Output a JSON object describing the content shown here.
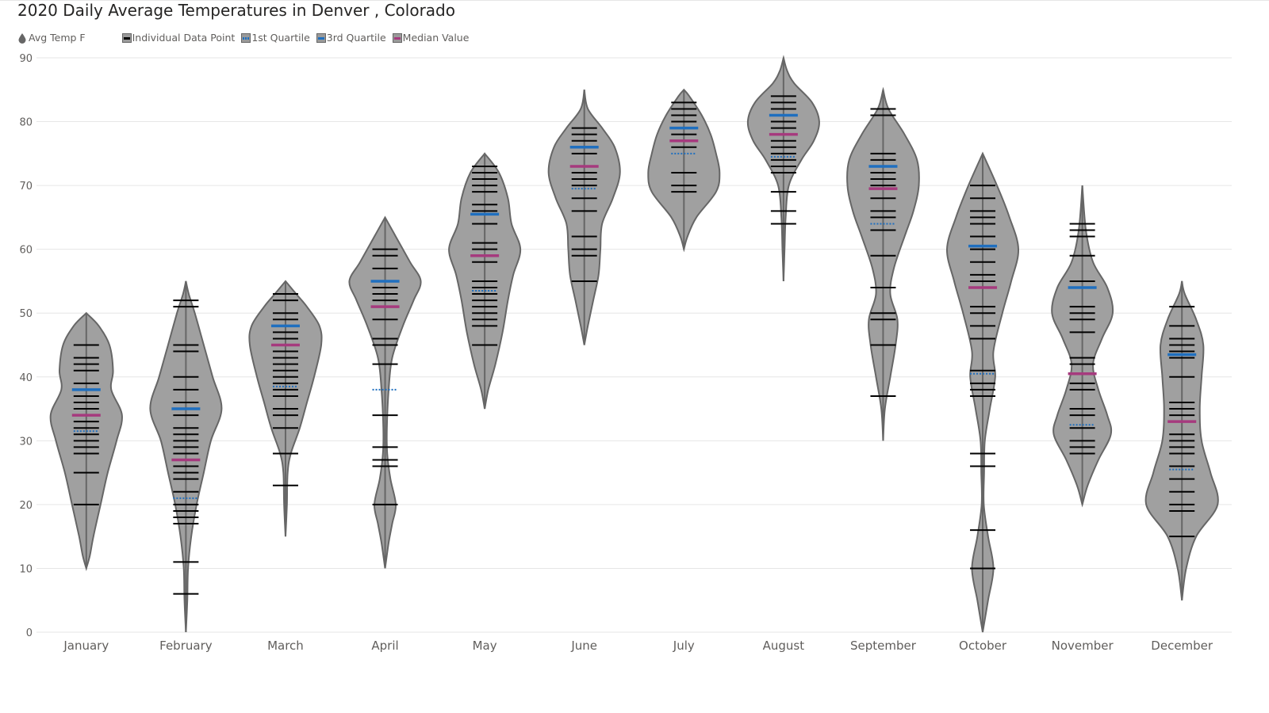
{
  "chart_data": {
    "type": "violin",
    "title": "2020 Daily Average Temperatures in Denver , Colorado",
    "ylim": [
      0,
      90
    ],
    "y_ticks": [
      0,
      10,
      20,
      30,
      40,
      50,
      60,
      70,
      80,
      90
    ],
    "grid": true,
    "legend_position": "top-left",
    "legend": [
      {
        "label": "Avg Temp F",
        "marker": "drop-icon",
        "color": "#666666"
      },
      {
        "label": "Individual Data Point",
        "marker": "line",
        "color": "#000000"
      },
      {
        "label": "1st Quartile",
        "marker": "dotted-line",
        "color": "#1f6fbf"
      },
      {
        "label": "3rd Quartile",
        "marker": "line",
        "color": "#1f6fbf"
      },
      {
        "label": "Median Value",
        "marker": "line",
        "color": "#a63a7e"
      }
    ],
    "colors": {
      "violin_fill": "#a0a0a0",
      "violin_stroke": "#666666",
      "data_point": "#000000",
      "quartile": "#1f6fbf",
      "median": "#a63a7e",
      "grid": "#e6e6e6"
    },
    "categories": [
      "January",
      "February",
      "March",
      "April",
      "May",
      "June",
      "July",
      "August",
      "September",
      "October",
      "November",
      "December"
    ],
    "months": [
      {
        "name": "January",
        "min": 10,
        "max": 50,
        "q1": 31.5,
        "median": 34,
        "q3": 38,
        "density": [
          [
            10,
            0
          ],
          [
            12,
            0.1
          ],
          [
            15,
            0.2
          ],
          [
            20,
            0.4
          ],
          [
            25,
            0.6
          ],
          [
            30,
            0.85
          ],
          [
            34,
            1.0
          ],
          [
            38,
            0.7
          ],
          [
            41,
            0.75
          ],
          [
            45,
            0.65
          ],
          [
            48,
            0.35
          ],
          [
            50,
            0
          ]
        ],
        "points": [
          20,
          25,
          28,
          29,
          30,
          31,
          32,
          33,
          35,
          36,
          37,
          39,
          41,
          42,
          43,
          45
        ]
      },
      {
        "name": "February",
        "min": 0,
        "max": 55,
        "q1": 21,
        "median": 27,
        "q3": 35,
        "density": [
          [
            0,
            0
          ],
          [
            5,
            0.04
          ],
          [
            10,
            0.06
          ],
          [
            15,
            0.15
          ],
          [
            20,
            0.3
          ],
          [
            25,
            0.5
          ],
          [
            30,
            0.7
          ],
          [
            35,
            1.0
          ],
          [
            40,
            0.75
          ],
          [
            45,
            0.5
          ],
          [
            50,
            0.25
          ],
          [
            53,
            0.08
          ],
          [
            55,
            0
          ]
        ],
        "points": [
          6,
          11,
          17,
          18,
          19,
          20,
          22,
          24,
          25,
          26,
          28,
          29,
          30,
          31,
          32,
          34,
          36,
          38,
          40,
          44,
          45,
          51,
          52
        ]
      },
      {
        "name": "March",
        "min": 15,
        "max": 55,
        "q1": 38.5,
        "median": 45,
        "q3": 48,
        "density": [
          [
            15,
            0
          ],
          [
            20,
            0.04
          ],
          [
            25,
            0.06
          ],
          [
            28,
            0.15
          ],
          [
            32,
            0.4
          ],
          [
            36,
            0.6
          ],
          [
            40,
            0.8
          ],
          [
            45,
            1.0
          ],
          [
            48,
            0.95
          ],
          [
            51,
            0.6
          ],
          [
            53,
            0.3
          ],
          [
            55,
            0
          ]
        ],
        "points": [
          23,
          28,
          32,
          34,
          35,
          37,
          38,
          39,
          40,
          41,
          42,
          43,
          44,
          46,
          47,
          49,
          50,
          52,
          53
        ]
      },
      {
        "name": "April",
        "min": 10,
        "max": 65,
        "q1": 38,
        "median": 51,
        "q3": 55,
        "density": [
          [
            10,
            0
          ],
          [
            14,
            0.1
          ],
          [
            17,
            0.2
          ],
          [
            20,
            0.3
          ],
          [
            24,
            0.15
          ],
          [
            28,
            0.06
          ],
          [
            32,
            0.05
          ],
          [
            38,
            0.1
          ],
          [
            43,
            0.2
          ],
          [
            48,
            0.5
          ],
          [
            52,
            0.8
          ],
          [
            55,
            1.0
          ],
          [
            58,
            0.7
          ],
          [
            62,
            0.3
          ],
          [
            65,
            0
          ]
        ],
        "points": [
          20,
          26,
          27,
          29,
          34,
          42,
          45,
          46,
          49,
          52,
          53,
          54,
          57,
          59,
          60
        ]
      },
      {
        "name": "May",
        "min": 35,
        "max": 75,
        "q1": 53.5,
        "median": 59,
        "q3": 65.5,
        "density": [
          [
            35,
            0
          ],
          [
            38,
            0.1
          ],
          [
            42,
            0.3
          ],
          [
            47,
            0.5
          ],
          [
            52,
            0.65
          ],
          [
            56,
            0.8
          ],
          [
            60,
            1.0
          ],
          [
            64,
            0.75
          ],
          [
            68,
            0.65
          ],
          [
            72,
            0.4
          ],
          [
            75,
            0
          ]
        ],
        "points": [
          45,
          48,
          49,
          50,
          51,
          52,
          53,
          54,
          55,
          58,
          60,
          61,
          64,
          66,
          67,
          69,
          70,
          71,
          72,
          73
        ]
      },
      {
        "name": "June",
        "min": 45,
        "max": 85,
        "q1": 69.5,
        "median": 73,
        "q3": 76,
        "density": [
          [
            45,
            0
          ],
          [
            48,
            0.1
          ],
          [
            52,
            0.25
          ],
          [
            56,
            0.4
          ],
          [
            60,
            0.45
          ],
          [
            64,
            0.5
          ],
          [
            68,
            0.8
          ],
          [
            72,
            1.0
          ],
          [
            76,
            0.85
          ],
          [
            79,
            0.5
          ],
          [
            82,
            0.1
          ],
          [
            85,
            0
          ]
        ],
        "points": [
          55,
          59,
          60,
          62,
          66,
          68,
          70,
          71,
          72,
          75,
          77,
          78,
          79
        ]
      },
      {
        "name": "July",
        "min": 60,
        "max": 85,
        "q1": 75,
        "median": 77,
        "q3": 79,
        "density": [
          [
            60,
            0
          ],
          [
            62,
            0.1
          ],
          [
            65,
            0.35
          ],
          [
            69,
            0.9
          ],
          [
            72,
            1.0
          ],
          [
            75,
            0.9
          ],
          [
            78,
            0.75
          ],
          [
            81,
            0.5
          ],
          [
            84,
            0.15
          ],
          [
            85,
            0
          ]
        ],
        "points": [
          69,
          70,
          72,
          76,
          78,
          80,
          81,
          82,
          83
        ]
      },
      {
        "name": "August",
        "min": 55,
        "max": 90,
        "q1": 74.5,
        "median": 78,
        "q3": 81,
        "density": [
          [
            55,
            0
          ],
          [
            60,
            0.03
          ],
          [
            65,
            0.06
          ],
          [
            70,
            0.15
          ],
          [
            74,
            0.5
          ],
          [
            77,
            0.85
          ],
          [
            80,
            1.0
          ],
          [
            83,
            0.8
          ],
          [
            86,
            0.3
          ],
          [
            88,
            0.1
          ],
          [
            90,
            0
          ]
        ],
        "points": [
          64,
          66,
          69,
          72,
          73,
          74,
          75,
          76,
          77,
          79,
          80,
          82,
          83,
          84
        ]
      },
      {
        "name": "September",
        "min": 30,
        "max": 85,
        "q1": 64,
        "median": 69.5,
        "q3": 73,
        "density": [
          [
            30,
            0
          ],
          [
            35,
            0.05
          ],
          [
            40,
            0.2
          ],
          [
            45,
            0.35
          ],
          [
            49,
            0.4
          ],
          [
            53,
            0.2
          ],
          [
            57,
            0.3
          ],
          [
            62,
            0.6
          ],
          [
            66,
            0.85
          ],
          [
            70,
            1.0
          ],
          [
            74,
            0.95
          ],
          [
            78,
            0.6
          ],
          [
            82,
            0.15
          ],
          [
            85,
            0
          ]
        ],
        "points": [
          37,
          45,
          49,
          50,
          54,
          59,
          63,
          65,
          66,
          68,
          70,
          71,
          72,
          74,
          75,
          81,
          82
        ]
      },
      {
        "name": "October",
        "min": 0,
        "max": 75,
        "q1": 40.5,
        "median": 54,
        "q3": 60.5,
        "density": [
          [
            0,
            0
          ],
          [
            5,
            0.15
          ],
          [
            10,
            0.3
          ],
          [
            15,
            0.15
          ],
          [
            20,
            0.03
          ],
          [
            25,
            0.04
          ],
          [
            30,
            0.06
          ],
          [
            35,
            0.2
          ],
          [
            40,
            0.35
          ],
          [
            44,
            0.3
          ],
          [
            50,
            0.55
          ],
          [
            55,
            0.8
          ],
          [
            60,
            1.0
          ],
          [
            65,
            0.75
          ],
          [
            70,
            0.4
          ],
          [
            75,
            0
          ]
        ],
        "points": [
          10,
          16,
          26,
          28,
          37,
          38,
          39,
          41,
          46,
          48,
          50,
          51,
          55,
          56,
          58,
          60,
          62,
          64,
          65,
          66,
          68,
          70
        ]
      },
      {
        "name": "November",
        "min": 20,
        "max": 70,
        "q1": 32.5,
        "median": 40.5,
        "q3": 54,
        "density": [
          [
            20,
            0
          ],
          [
            23,
            0.15
          ],
          [
            27,
            0.45
          ],
          [
            31,
            0.8
          ],
          [
            34,
            0.7
          ],
          [
            38,
            0.45
          ],
          [
            42,
            0.3
          ],
          [
            46,
            0.55
          ],
          [
            50,
            0.85
          ],
          [
            54,
            0.7
          ],
          [
            58,
            0.3
          ],
          [
            63,
            0.1
          ],
          [
            70,
            0
          ]
        ],
        "points": [
          28,
          29,
          30,
          32,
          34,
          35,
          38,
          39,
          42,
          43,
          47,
          49,
          50,
          51,
          55,
          59,
          62,
          63,
          64
        ]
      },
      {
        "name": "December",
        "min": 5,
        "max": 55,
        "q1": 25.5,
        "median": 33,
        "q3": 43.5,
        "density": [
          [
            5,
            0
          ],
          [
            10,
            0.12
          ],
          [
            15,
            0.4
          ],
          [
            20,
            1.0
          ],
          [
            25,
            0.8
          ],
          [
            30,
            0.55
          ],
          [
            35,
            0.5
          ],
          [
            40,
            0.55
          ],
          [
            45,
            0.6
          ],
          [
            49,
            0.4
          ],
          [
            53,
            0.08
          ],
          [
            55,
            0
          ]
        ],
        "points": [
          15,
          19,
          20,
          22,
          24,
          26,
          28,
          29,
          30,
          31,
          34,
          35,
          36,
          40,
          43,
          44,
          45,
          46,
          48,
          51
        ]
      }
    ]
  }
}
